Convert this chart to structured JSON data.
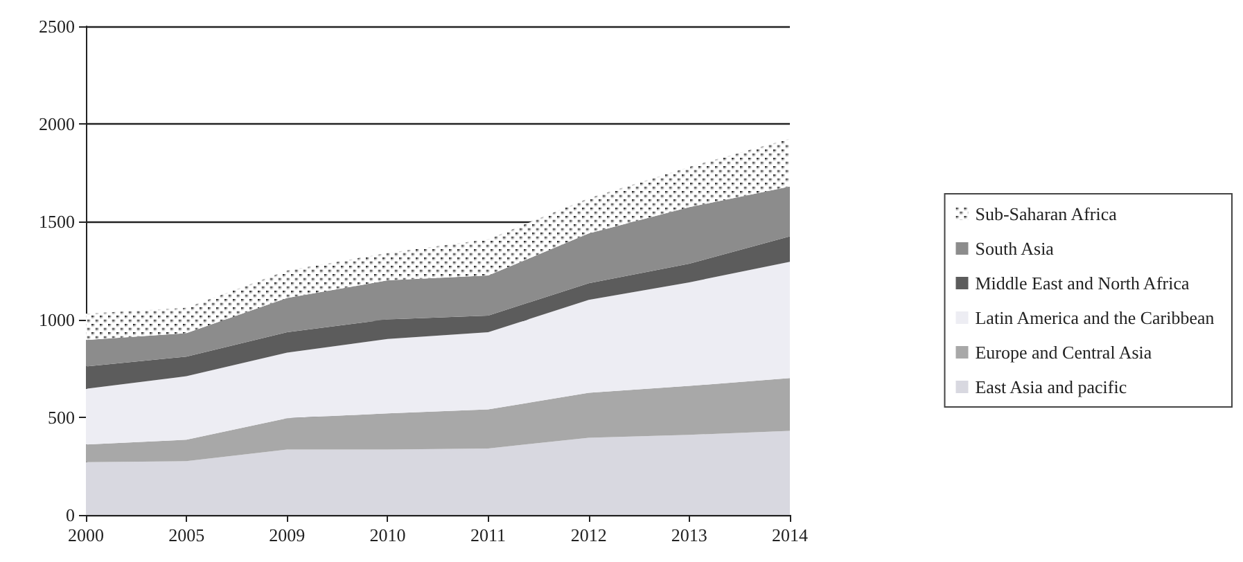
{
  "chart_data": {
    "type": "area",
    "stacked": true,
    "categories": [
      "2000",
      "2005",
      "2009",
      "2010",
      "2011",
      "2012",
      "2013",
      "2014"
    ],
    "series": [
      {
        "name": "East Asia and pacific",
        "color": "#d8d8e0",
        "values": [
          270,
          275,
          335,
          335,
          340,
          395,
          410,
          430
        ]
      },
      {
        "name": "Europe and Central Asia",
        "color": "#a8a8a8",
        "values": [
          90,
          110,
          160,
          185,
          200,
          230,
          250,
          270
        ]
      },
      {
        "name": "Latin America and the Caribbean",
        "color": "#ededf3",
        "values": [
          285,
          325,
          335,
          380,
          395,
          475,
          530,
          595
        ]
      },
      {
        "name": "Middle East and North Africa",
        "color": "#5c5c5c",
        "values": [
          115,
          100,
          105,
          100,
          85,
          85,
          95,
          130
        ]
      },
      {
        "name": "South Asia",
        "color": "#8c8c8c",
        "values": [
          135,
          120,
          175,
          200,
          205,
          255,
          290,
          255
        ]
      },
      {
        "name": "Sub-Saharan Africa",
        "color": "#ffffff",
        "values": [
          135,
          130,
          140,
          140,
          185,
          180,
          205,
          245
        ]
      }
    ],
    "ylim": [
      0,
      2500
    ],
    "yticks": [
      0,
      500,
      1000,
      1500,
      2000,
      2500
    ],
    "grid": "y",
    "legend": "right",
    "marker": "none"
  }
}
